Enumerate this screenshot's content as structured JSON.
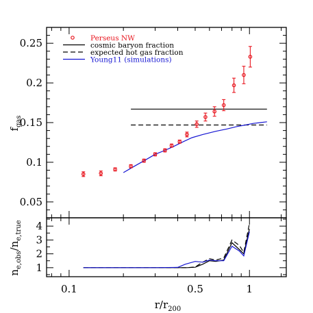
{
  "chart_data": [
    {
      "type": "scatter",
      "panel": "top",
      "xlabel": "r/r",
      "xlabel_sub": "200",
      "ylabel": "f",
      "ylabel_sub": "gas",
      "xscale": "log",
      "xlim": [
        0.075,
        1.6
      ],
      "ylim": [
        0.03,
        0.27
      ],
      "ytick_labels": [
        "0.05",
        "0.1",
        "0.15",
        "0.2",
        "0.25"
      ],
      "grid": false,
      "legend_position": "top-left",
      "legend": [
        {
          "label": "Perseus NW",
          "color": "#e8141d",
          "style": "circle"
        },
        {
          "label": "cosmic baryon fraction",
          "color": "#000000",
          "style": "solid"
        },
        {
          "label": "expected hot gas fraction",
          "color": "#000000",
          "style": "dashed"
        },
        {
          "label": "Young11 (simulations)",
          "color": "#1414d2",
          "style": "solid"
        }
      ],
      "series": [
        {
          "name": "Perseus NW",
          "color": "#e8141d",
          "x": [
            0.12,
            0.15,
            0.18,
            0.22,
            0.26,
            0.3,
            0.34,
            0.37,
            0.41,
            0.45,
            0.51,
            0.57,
            0.64,
            0.72,
            0.82,
            0.93,
            1.01
          ],
          "y": [
            0.085,
            0.086,
            0.091,
            0.095,
            0.102,
            0.11,
            0.115,
            0.121,
            0.126,
            0.135,
            0.148,
            0.157,
            0.164,
            0.172,
            0.197,
            0.21,
            0.233
          ],
          "yerr": [
            0.003,
            0.003,
            0.002,
            0.002,
            0.002,
            0.002,
            0.002,
            0.002,
            0.002,
            0.003,
            0.004,
            0.005,
            0.006,
            0.007,
            0.009,
            0.011,
            0.013
          ]
        },
        {
          "name": "cosmic baryon fraction",
          "color": "#000000",
          "style": "solid",
          "x": [
            0.22,
            1.25
          ],
          "y": [
            0.167,
            0.167
          ]
        },
        {
          "name": "expected hot gas fraction",
          "color": "#000000",
          "style": "dashed",
          "x": [
            0.22,
            1.25
          ],
          "y": [
            0.147,
            0.147
          ]
        },
        {
          "name": "Young11 (simulations)",
          "color": "#1414d2",
          "style": "solid",
          "x": [
            0.2,
            0.23,
            0.27,
            0.3,
            0.34,
            0.38,
            0.43,
            0.48,
            0.55,
            0.65,
            0.75,
            0.85,
            0.95,
            1.05,
            1.15,
            1.25
          ],
          "y": [
            0.087,
            0.095,
            0.104,
            0.11,
            0.115,
            0.12,
            0.126,
            0.131,
            0.135,
            0.139,
            0.142,
            0.145,
            0.147,
            0.149,
            0.15,
            0.151
          ]
        }
      ]
    },
    {
      "type": "line",
      "panel": "bottom",
      "xlabel": "r/r",
      "xlabel_sub": "200",
      "ylabel": "n",
      "ylabel_sub": "e,obs",
      "ylabel_slash": "/n",
      "ylabel_sub2": "e,true",
      "xscale": "log",
      "xlim": [
        0.075,
        1.6
      ],
      "ylim": [
        0.35,
        4.6
      ],
      "xtick_labels": [
        "0.1",
        "0.5",
        "1"
      ],
      "ytick_labels": [
        "1",
        "2",
        "3",
        "4"
      ],
      "grid": false,
      "series": [
        {
          "color": "#000000",
          "style": "dashed",
          "x": [
            0.12,
            0.2,
            0.3,
            0.4,
            0.45,
            0.5,
            0.55,
            0.6,
            0.65,
            0.72,
            0.8,
            0.88,
            0.93,
            1.0
          ],
          "y": [
            1.0,
            1.0,
            1.0,
            1.0,
            1.0,
            1.05,
            1.4,
            1.65,
            1.55,
            1.7,
            3.0,
            2.6,
            2.1,
            4.2
          ]
        },
        {
          "color": "#000000",
          "style": "solid",
          "x": [
            0.12,
            0.2,
            0.3,
            0.4,
            0.45,
            0.5,
            0.55,
            0.6,
            0.65,
            0.72,
            0.8,
            0.88,
            0.93,
            1.0
          ],
          "y": [
            1.0,
            1.0,
            1.0,
            1.0,
            1.0,
            1.03,
            1.25,
            1.5,
            1.45,
            1.55,
            2.8,
            2.3,
            2.0,
            3.8
          ]
        },
        {
          "color": "#1414d2",
          "style": "solid",
          "x": [
            0.12,
            0.2,
            0.3,
            0.4,
            0.44,
            0.5,
            0.55,
            0.6,
            0.65,
            0.72,
            0.8,
            0.88,
            0.93,
            1.0
          ],
          "y": [
            1.0,
            1.0,
            1.0,
            1.02,
            1.25,
            1.45,
            1.4,
            1.55,
            1.5,
            1.5,
            2.55,
            2.2,
            1.85,
            3.6
          ]
        }
      ]
    }
  ]
}
